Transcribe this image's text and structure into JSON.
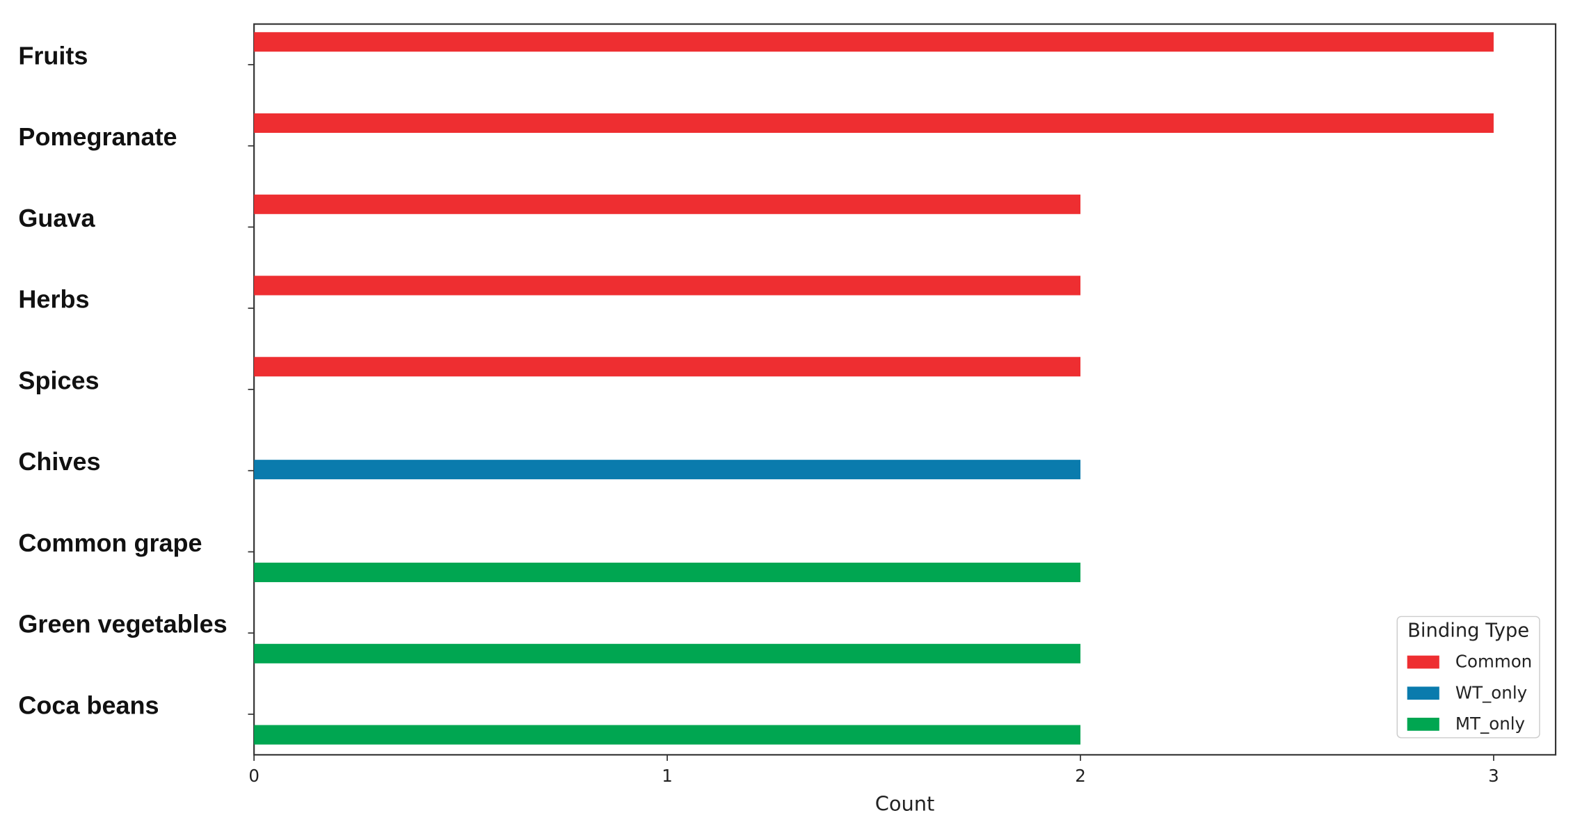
{
  "chart_data": {
    "type": "bar",
    "orientation": "horizontal",
    "categories": [
      "Fruits",
      "Pomegranate",
      "Guava",
      "Herbs",
      "Spices",
      "Chives",
      "Common grape",
      "Green vegetables",
      "Coca beans"
    ],
    "series": [
      {
        "name": "Common",
        "color": "#ee2e31",
        "values": [
          3,
          3,
          2,
          2,
          2,
          null,
          null,
          null,
          null
        ]
      },
      {
        "name": "WT_only",
        "color": "#0a7bad",
        "values": [
          null,
          null,
          null,
          null,
          null,
          2,
          null,
          null,
          null
        ]
      },
      {
        "name": "MT_only",
        "color": "#00a651",
        "values": [
          null,
          null,
          null,
          null,
          null,
          null,
          2,
          2,
          2
        ]
      }
    ],
    "xlabel": "Count",
    "xlim": [
      0,
      3.15
    ],
    "xticks": [
      0,
      1,
      2,
      3
    ],
    "legend_title": "Binding Type",
    "legend": "lower right"
  }
}
